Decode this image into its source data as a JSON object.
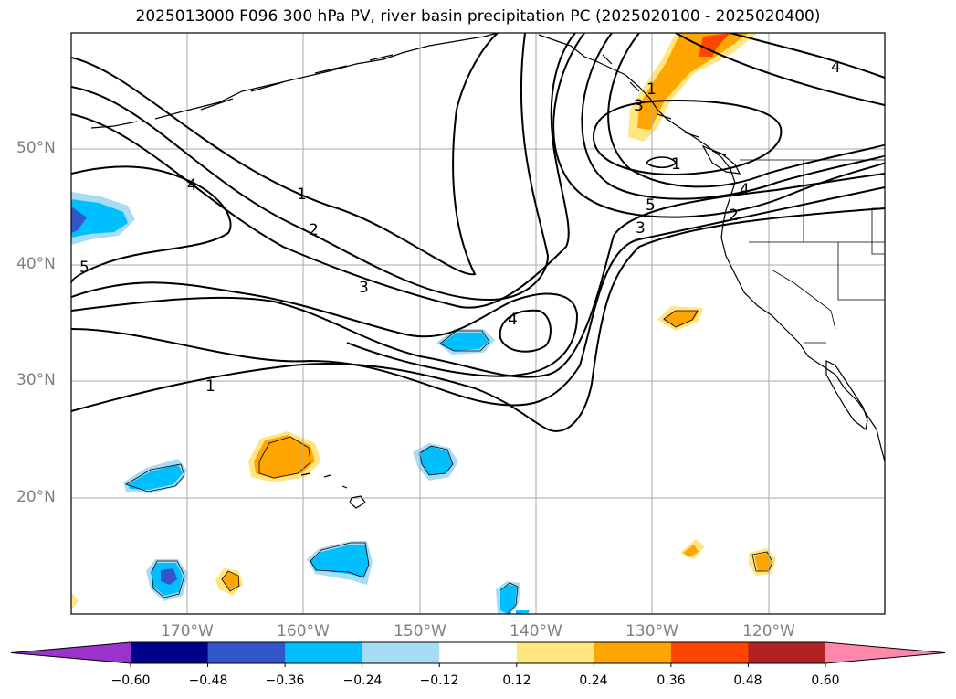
{
  "title": "2025013000 F096 300 hPa PV, river basin precipitation PC (2025020100 - 2025020400)",
  "lat_labels": [
    "50°N",
    "40°N",
    "30°N",
    "20°N"
  ],
  "lon_labels": [
    "170°W",
    "160°W",
    "150°W",
    "140°W",
    "130°W",
    "120°W"
  ],
  "contour_labels": [
    "1",
    "2",
    "3",
    "4",
    "5",
    "1",
    "2",
    "3",
    "4",
    "5",
    "1",
    "3",
    "4",
    "4",
    "1"
  ],
  "colorbar": {
    "ticks": [
      "−0.60",
      "−0.48",
      "−0.36",
      "−0.24",
      "−0.12",
      "0.12",
      "0.24",
      "0.36",
      "0.48",
      "0.60"
    ],
    "colors": [
      "#9933cc",
      "#00008b",
      "#3355cc",
      "#00bfff",
      "#a8dcf5",
      "#ffffff",
      "#ffe680",
      "#ffa500",
      "#ff4500",
      "#b22222",
      "#ff88aa"
    ]
  },
  "map_extent": {
    "lon": [
      -180,
      -110
    ],
    "lat": [
      10,
      60
    ]
  },
  "contour_field": "300 hPa PV",
  "fill_field": "river basin precipitation PC"
}
